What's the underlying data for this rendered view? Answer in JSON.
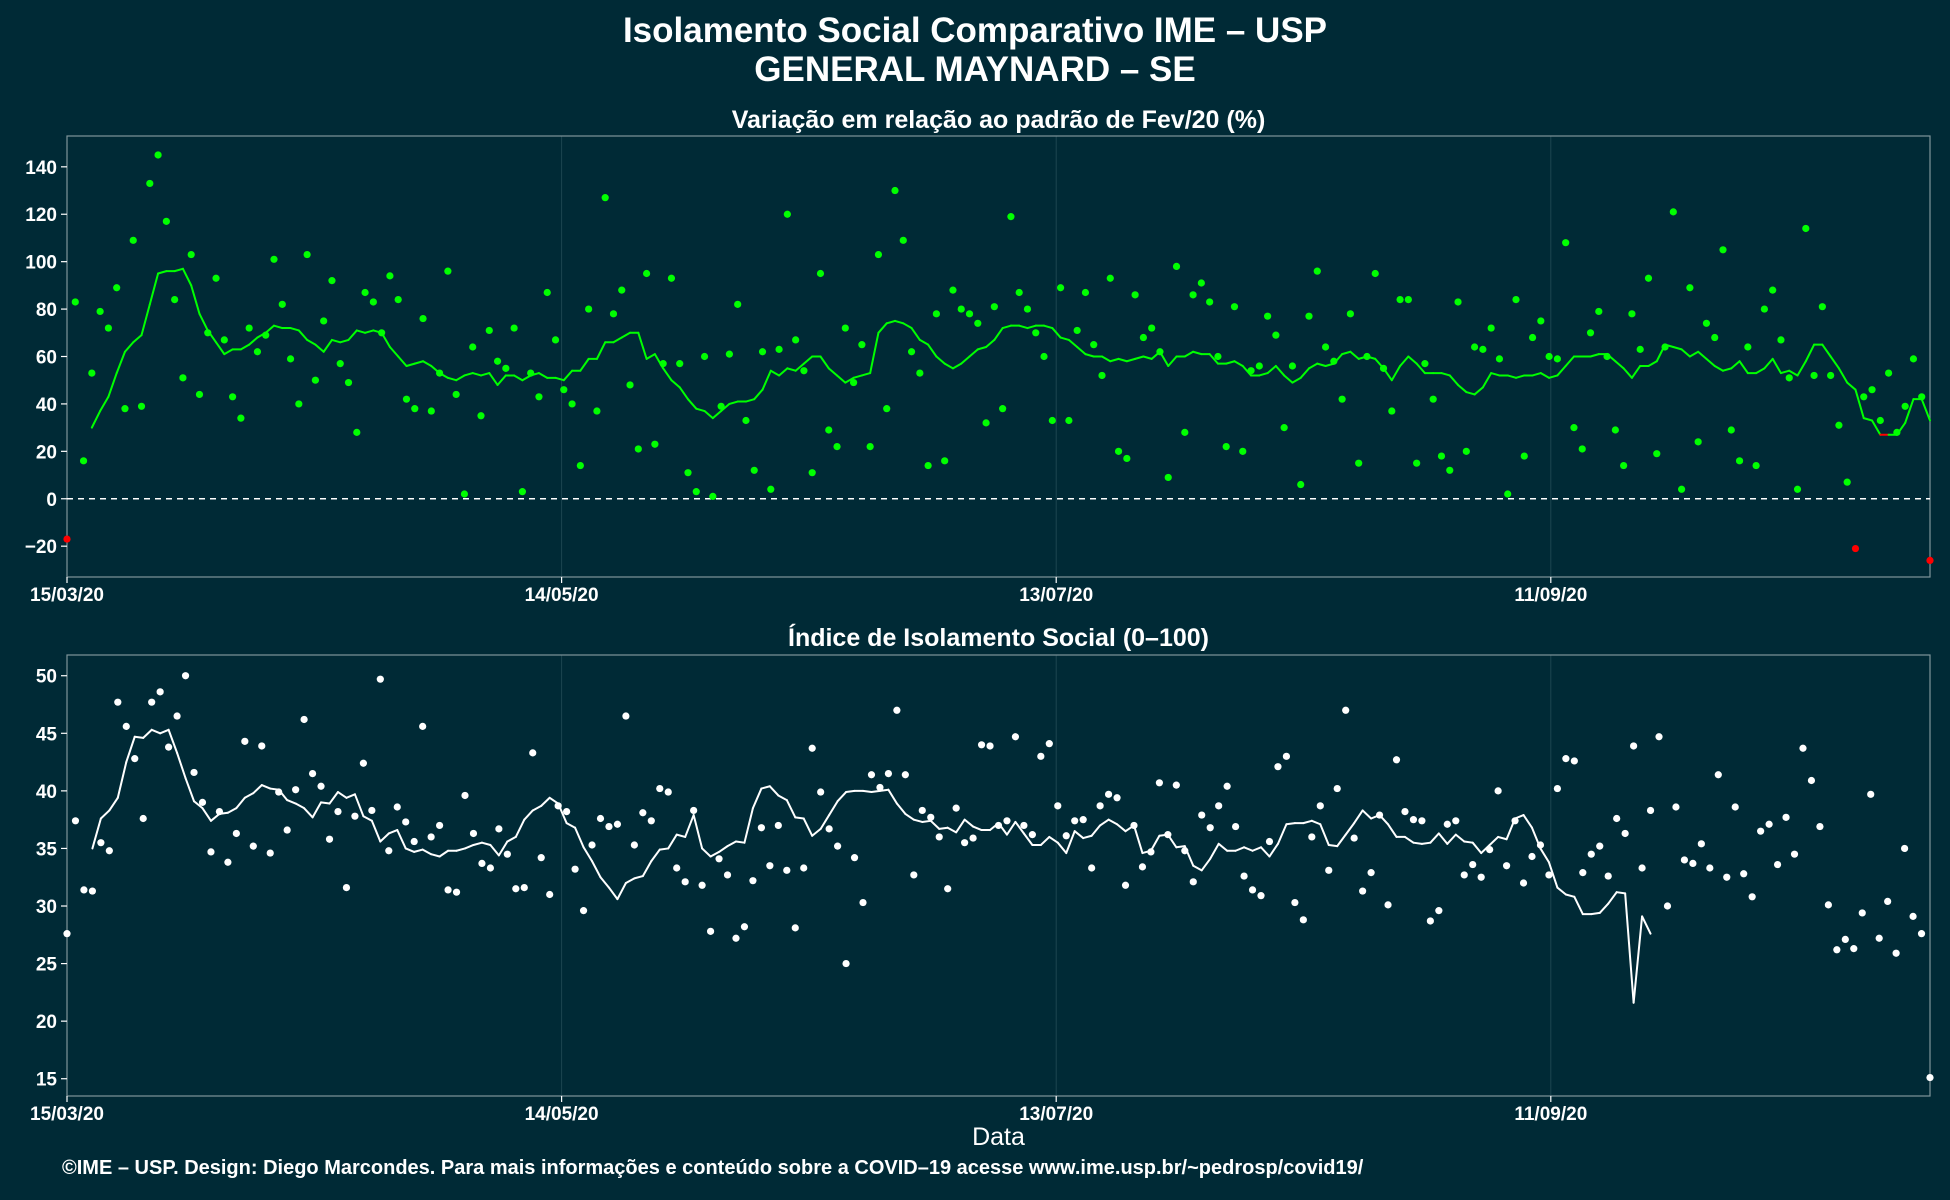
{
  "title": "Isolamento Social Comparativo IME – USP",
  "subtitle": "GENERAL MAYNARD – SE",
  "footer": "©IME – USP. Design: Diego Marcondes. Para mais informações e conteúdo sobre a COVID–19 acesse www.ime.usp.br/~pedrosp/covid19/",
  "colors": {
    "background": "#002a36",
    "positive": "#00ff00",
    "negative": "#ff0000",
    "index": "#ffffff",
    "grid": "#1c4650",
    "zero_line": "#ffffff"
  },
  "chart_data": [
    {
      "type": "scatter",
      "title": "Variação em relação ao padrão de Fev/20 (%)",
      "xlabel": "",
      "ylabel": "",
      "x_ticks": [
        "15/03/20",
        "14/05/20",
        "13/07/20",
        "11/09/20"
      ],
      "x_tick_days": [
        0,
        60,
        120,
        180
      ],
      "x_range_days": [
        0,
        226
      ],
      "ylim": [
        -33,
        153
      ],
      "y_ticks": [
        -20,
        0,
        20,
        40,
        60,
        80,
        100,
        120,
        140
      ],
      "reference_line": 0,
      "point_colors": "green if value ≥ 0, red if value < 0",
      "series": [
        {
          "kind": "points",
          "values": [
            -17,
            83,
            16,
            53,
            79,
            72,
            89,
            38,
            109,
            39,
            133,
            145,
            117,
            84,
            51,
            103,
            44,
            70,
            93,
            67,
            43,
            34,
            72,
            62,
            69,
            101,
            82,
            59,
            40,
            103,
            50,
            75,
            92,
            57,
            49,
            28,
            87,
            83,
            70,
            94,
            84,
            42,
            38,
            76,
            37,
            53,
            96,
            44,
            2,
            64,
            35,
            71,
            58,
            55,
            72,
            3,
            53,
            43,
            87,
            67,
            46,
            40,
            14,
            80,
            37,
            127,
            78,
            88,
            48,
            21,
            95,
            23,
            57,
            93,
            57,
            11,
            3,
            60,
            1,
            39,
            61,
            82,
            33,
            12,
            62,
            4,
            63,
            120,
            67,
            54,
            11,
            95,
            29,
            22,
            72,
            49,
            65,
            22,
            103,
            38,
            130,
            109,
            62,
            53,
            14,
            78,
            16,
            88,
            80,
            78,
            74,
            32,
            81,
            38,
            119,
            87,
            80,
            70,
            60,
            33,
            89,
            33,
            71,
            87,
            65,
            52,
            93,
            20,
            17,
            86,
            68,
            72,
            62,
            9,
            98,
            28,
            86,
            91,
            83,
            60,
            22,
            81,
            20,
            54,
            56,
            77,
            69,
            30,
            56,
            6,
            77,
            96,
            64,
            58,
            42,
            78,
            15,
            60,
            95,
            55,
            37,
            84,
            84,
            15,
            57,
            42,
            18,
            12,
            83,
            20,
            64,
            63,
            72,
            59,
            2,
            84,
            18,
            68,
            75,
            60,
            59,
            108,
            30,
            21,
            70,
            79,
            60,
            29,
            14,
            78,
            63,
            93,
            19,
            64,
            121,
            4,
            89,
            24,
            74,
            68,
            105,
            29,
            16,
            64,
            14,
            80,
            88,
            67,
            51,
            4,
            114,
            52,
            81,
            52,
            31,
            7,
            -21,
            43,
            46,
            33,
            53,
            28,
            39,
            59,
            43,
            -26
          ],
          "point_colors_explicit": {
            "0": "red",
            "227": "red",
            "234": "red"
          }
        },
        {
          "kind": "moving-average-line",
          "values": [
            30,
            37,
            43,
            53,
            62,
            66,
            69,
            82,
            95,
            96,
            96,
            97,
            90,
            78,
            71,
            66,
            61,
            63,
            63,
            65,
            68,
            70,
            73,
            72,
            72,
            71,
            67,
            65,
            62,
            67,
            66,
            67,
            71,
            70,
            71,
            70,
            64,
            60,
            56,
            57,
            58,
            56,
            53,
            51,
            50,
            52,
            53,
            52,
            53,
            48,
            52,
            52,
            50,
            52,
            53,
            51,
            51,
            50,
            54,
            54,
            59,
            59,
            66,
            66,
            68,
            70,
            70,
            59,
            61,
            55,
            50,
            47,
            42,
            38,
            37,
            34,
            37,
            40,
            41,
            41,
            42,
            46,
            54,
            52,
            55,
            54,
            57,
            60,
            60,
            55,
            52,
            49,
            51,
            52,
            53,
            70,
            74,
            75,
            74,
            72,
            67,
            65,
            60,
            57,
            55,
            57,
            60,
            63,
            64,
            67,
            72,
            73,
            73,
            72,
            73,
            73,
            72,
            68,
            67,
            64,
            61,
            60,
            60,
            58,
            59,
            58,
            59,
            60,
            59,
            62,
            56,
            60,
            60,
            62,
            61,
            61,
            57,
            57,
            58,
            56,
            52,
            52,
            53,
            56,
            52,
            49,
            51,
            55,
            57,
            56,
            57,
            61,
            62,
            59,
            60,
            59,
            55,
            50,
            56,
            60,
            57,
            53,
            53,
            53,
            52,
            48,
            45,
            44,
            47,
            53,
            52,
            52,
            51,
            52,
            52,
            53,
            51,
            52,
            56,
            60,
            60,
            60,
            61,
            61,
            58,
            55,
            51,
            56,
            56,
            58,
            65,
            64,
            63,
            60,
            62,
            59,
            56,
            54,
            55,
            58,
            53,
            53,
            55,
            59,
            53,
            54,
            52,
            58,
            65,
            65,
            60,
            55,
            49,
            46,
            34,
            33,
            27,
            27,
            27,
            32,
            42,
            42,
            33
          ]
        }
      ]
    },
    {
      "type": "scatter",
      "title": "Índice de Isolamento Social (0–100)",
      "xlabel": "Data",
      "ylabel": "",
      "x_ticks": [
        "15/03/20",
        "14/05/20",
        "13/07/20",
        "11/09/20"
      ],
      "x_tick_days": [
        0,
        60,
        120,
        180
      ],
      "x_range_days": [
        0,
        226
      ],
      "ylim": [
        13.5,
        51.8
      ],
      "y_ticks": [
        15,
        20,
        25,
        30,
        35,
        40,
        45,
        50
      ],
      "series": [
        {
          "kind": "points",
          "values": [
            27.6,
            37.4,
            31.4,
            31.3,
            35.5,
            34.8,
            47.7,
            45.6,
            42.8,
            37.6,
            47.7,
            48.6,
            43.8,
            46.5,
            50.0,
            41.6,
            39.0,
            34.7,
            38.2,
            33.8,
            36.3,
            44.3,
            35.2,
            43.9,
            34.6,
            39.9,
            36.6,
            40.1,
            46.2,
            41.5,
            40.4,
            35.8,
            38.2,
            31.6,
            37.8,
            42.4,
            38.3,
            49.7,
            34.8,
            38.6,
            37.3,
            35.6,
            45.6,
            36.0,
            37.0,
            31.4,
            31.2,
            39.6,
            36.3,
            33.7,
            33.3,
            36.7,
            34.5,
            31.5,
            31.6,
            43.3,
            34.2,
            31.0,
            38.7,
            38.2,
            33.2,
            29.6,
            35.3,
            37.6,
            36.9,
            37.1,
            46.5,
            35.3,
            38.1,
            37.4,
            40.2,
            39.9,
            33.3,
            32.1,
            38.3,
            31.8,
            27.8,
            34.1,
            32.7,
            27.2,
            28.2,
            32.2,
            36.8,
            33.5,
            37.0,
            33.1,
            28.1,
            33.3,
            43.7,
            39.9,
            36.7,
            35.2,
            25.0,
            34.2,
            30.3,
            41.4,
            40.3,
            41.5,
            47.0,
            41.4,
            32.7,
            38.3,
            37.7,
            36.0,
            31.5,
            38.5,
            35.5,
            35.9,
            44.0,
            43.9,
            37.0,
            37.4,
            44.7,
            37.0,
            36.2,
            43.0,
            44.1,
            38.7,
            36.1,
            37.4,
            37.5,
            33.3,
            38.7,
            39.7,
            39.4,
            31.8,
            37.0,
            33.4,
            34.7,
            40.7,
            36.2,
            40.5,
            34.8,
            32.1,
            37.9,
            36.8,
            38.7,
            40.4,
            36.9,
            32.6,
            31.4,
            30.9,
            35.6,
            42.1,
            43.0,
            30.3,
            28.8,
            36.0,
            38.7,
            33.1,
            40.2,
            47.0,
            35.9,
            31.3,
            32.9,
            37.9,
            30.1,
            42.7,
            38.2,
            37.5,
            37.4,
            28.7,
            29.6,
            37.1,
            37.4,
            32.7,
            33.6,
            32.5,
            34.9,
            40.0,
            33.5,
            37.4,
            32.0,
            34.3,
            35.3,
            32.7,
            40.2,
            42.8,
            42.6,
            32.9,
            34.5,
            35.2,
            32.6,
            37.6,
            36.3,
            43.9,
            33.3,
            38.3,
            44.7,
            30.0,
            38.6,
            34.0,
            33.7,
            35.4,
            33.3,
            41.4,
            32.5,
            38.6,
            32.8,
            30.8,
            36.5,
            37.1,
            33.6,
            37.7,
            34.5,
            43.7,
            40.9,
            36.9,
            30.1,
            26.2,
            27.1,
            26.3,
            29.4,
            39.7,
            27.2,
            30.4,
            25.9,
            35.0,
            29.1,
            27.6,
            15.1
          ]
        },
        {
          "kind": "moving-average-line",
          "values": [
            35.0,
            37.6,
            38.3,
            39.4,
            42.5,
            44.7,
            44.6,
            45.3,
            45.0,
            45.3,
            43.3,
            41.1,
            39.1,
            38.5,
            37.4,
            38.0,
            38.1,
            38.5,
            39.4,
            39.8,
            40.5,
            40.2,
            40.1,
            39.2,
            38.9,
            38.5,
            37.7,
            39.0,
            38.9,
            39.9,
            39.4,
            39.7,
            37.8,
            37.4,
            35.6,
            36.3,
            36.6,
            35.0,
            34.7,
            34.9,
            34.5,
            34.3,
            34.8,
            34.8,
            35.0,
            35.3,
            35.5,
            35.3,
            34.4,
            35.6,
            36.0,
            37.5,
            38.3,
            38.7,
            39.4,
            38.9,
            37.2,
            36.8,
            35.1,
            33.9,
            32.5,
            31.6,
            30.6,
            32.0,
            32.4,
            32.6,
            33.9,
            34.9,
            35.0,
            36.2,
            36.0,
            37.9,
            35.0,
            34.3,
            34.7,
            35.2,
            35.6,
            35.5,
            38.5,
            40.2,
            40.4,
            39.6,
            39.2,
            37.7,
            37.6,
            36.1,
            36.7,
            37.9,
            39.1,
            39.9,
            40.0,
            40.0,
            39.9,
            40.0,
            40.1,
            38.9,
            38.0,
            37.5,
            37.3,
            37.4,
            36.7,
            36.8,
            36.4,
            37.5,
            36.9,
            36.6,
            36.6,
            37.2,
            36.2,
            37.3,
            36.3,
            35.3,
            35.3,
            36.0,
            35.5,
            34.6,
            36.5,
            35.9,
            36.1,
            37.0,
            37.5,
            37.1,
            36.5,
            37.0,
            34.6,
            34.8,
            36.1,
            36.2,
            35.1,
            35.2,
            33.5,
            33.1,
            34.1,
            35.4,
            34.8,
            34.8,
            35.1,
            34.8,
            35.1,
            34.3,
            35.4,
            37.1,
            37.2,
            37.2,
            37.4,
            37.1,
            35.3,
            35.2,
            36.2,
            37.2,
            38.3,
            37.6,
            37.9,
            37.1,
            36.0,
            36.0,
            35.5,
            35.4,
            35.5,
            36.3,
            35.4,
            36.2,
            35.6,
            35.5,
            34.6,
            35.3,
            36.0,
            35.8,
            37.6,
            37.9,
            36.8,
            35.0,
            33.8,
            31.6,
            31.0,
            30.8,
            29.3,
            29.3,
            29.4,
            30.2,
            31.2,
            31.1,
            21.6,
            29.1,
            27.6
          ]
        }
      ]
    }
  ]
}
